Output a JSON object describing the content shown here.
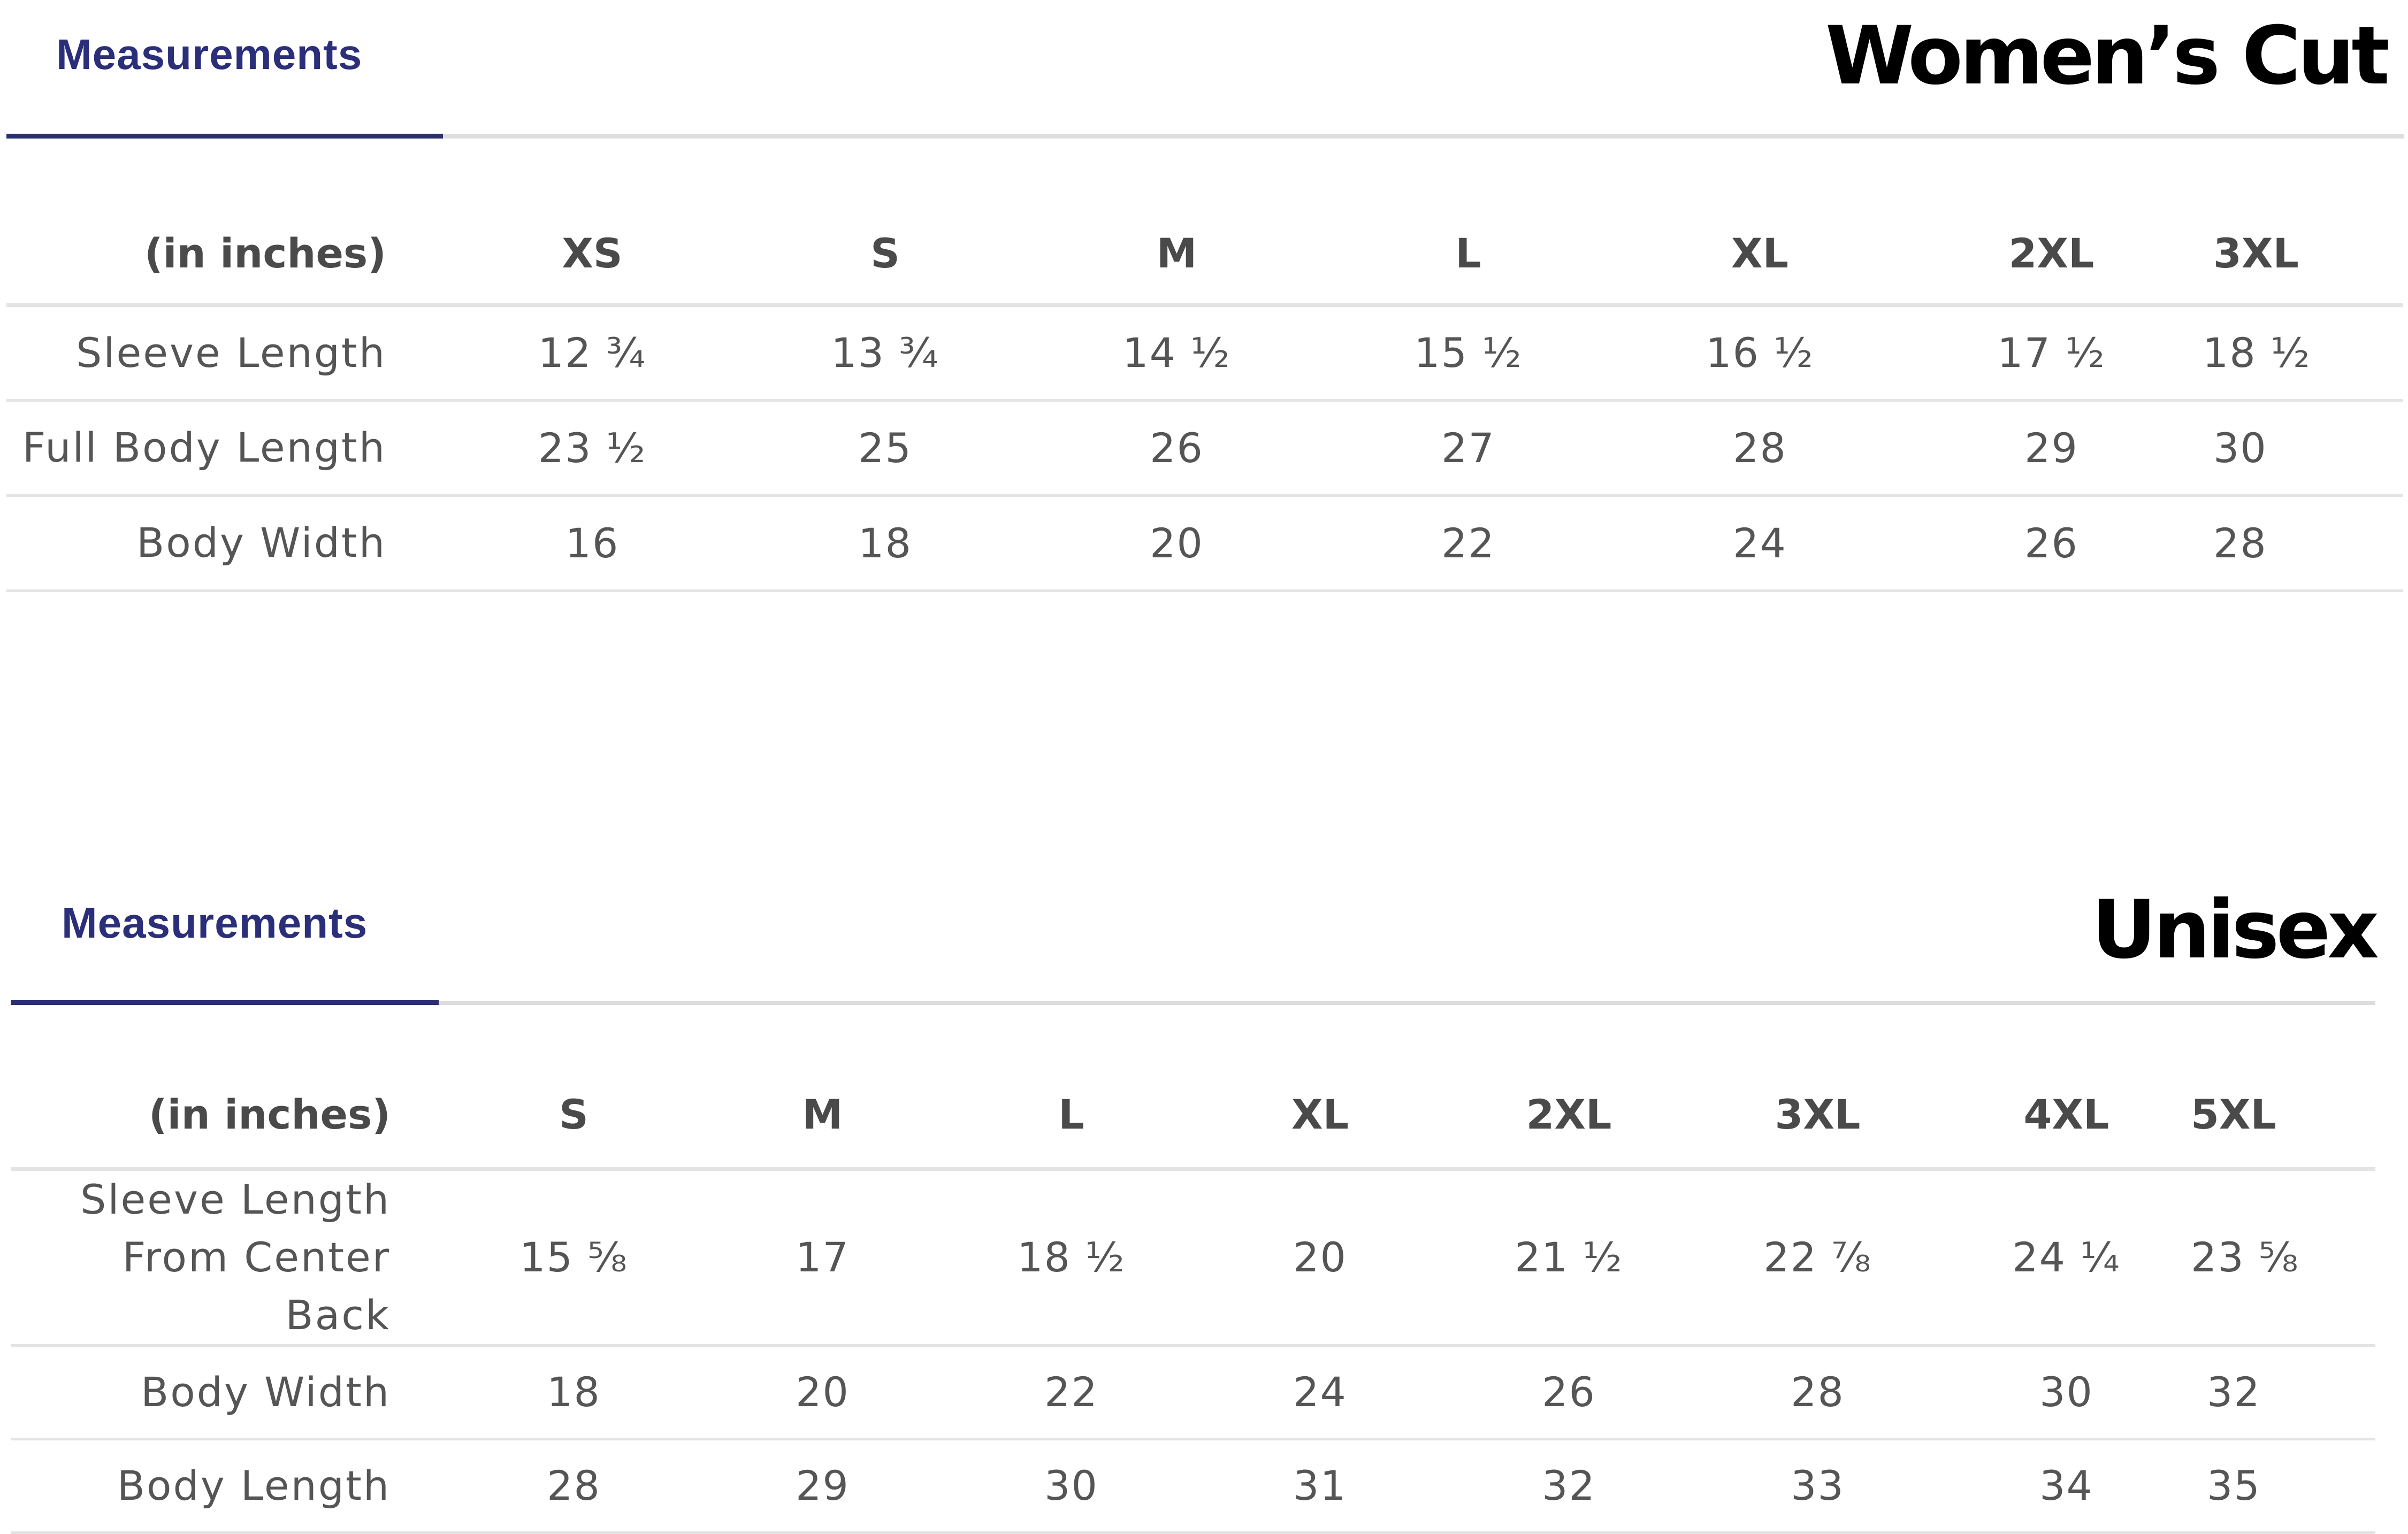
{
  "womens": {
    "tab_label": "Measurements",
    "title": "Women’s Cut",
    "unit_header": "(in inches)",
    "sizes": [
      "XS",
      "S",
      "M",
      "L",
      "XL",
      "2XL",
      "3XL"
    ],
    "rows": [
      {
        "label": "Sleeve Length",
        "values": [
          "12 ¾",
          "13 ¾",
          "14 ½",
          "15 ½",
          "16 ½",
          "17 ½",
          "18 ½"
        ]
      },
      {
        "label": "Full Body Length",
        "values": [
          "23 ½",
          "25",
          "26",
          "27",
          "28",
          "29",
          "30"
        ]
      },
      {
        "label": "Body Width",
        "values": [
          "16",
          "18",
          "20",
          "22",
          "24",
          "26",
          "28"
        ]
      }
    ]
  },
  "unisex": {
    "tab_label": "Measurements",
    "title": "Unisex",
    "unit_header": "(in inches)",
    "sizes": [
      "S",
      "M",
      "L",
      "XL",
      "2XL",
      "3XL",
      "4XL",
      "5XL"
    ],
    "rows": [
      {
        "label": "Sleeve Length From Center Back",
        "values": [
          "15 ⅝",
          "17",
          "18 ½",
          "20",
          "21 ½",
          "22 ⅞",
          "24 ¼",
          "23 ⅝"
        ]
      },
      {
        "label": "Body Width",
        "values": [
          "18",
          "20",
          "22",
          "24",
          "26",
          "28",
          "30",
          "32"
        ]
      },
      {
        "label": "Body Length",
        "values": [
          "28",
          "29",
          "30",
          "31",
          "32",
          "33",
          "34",
          "35"
        ]
      }
    ]
  },
  "colors": {
    "tab_text": "#2b2f7a",
    "tab_underline": "#2b2f6e",
    "divider": "#dddddd",
    "cell_text": "#555555",
    "title_text": "#000000"
  }
}
